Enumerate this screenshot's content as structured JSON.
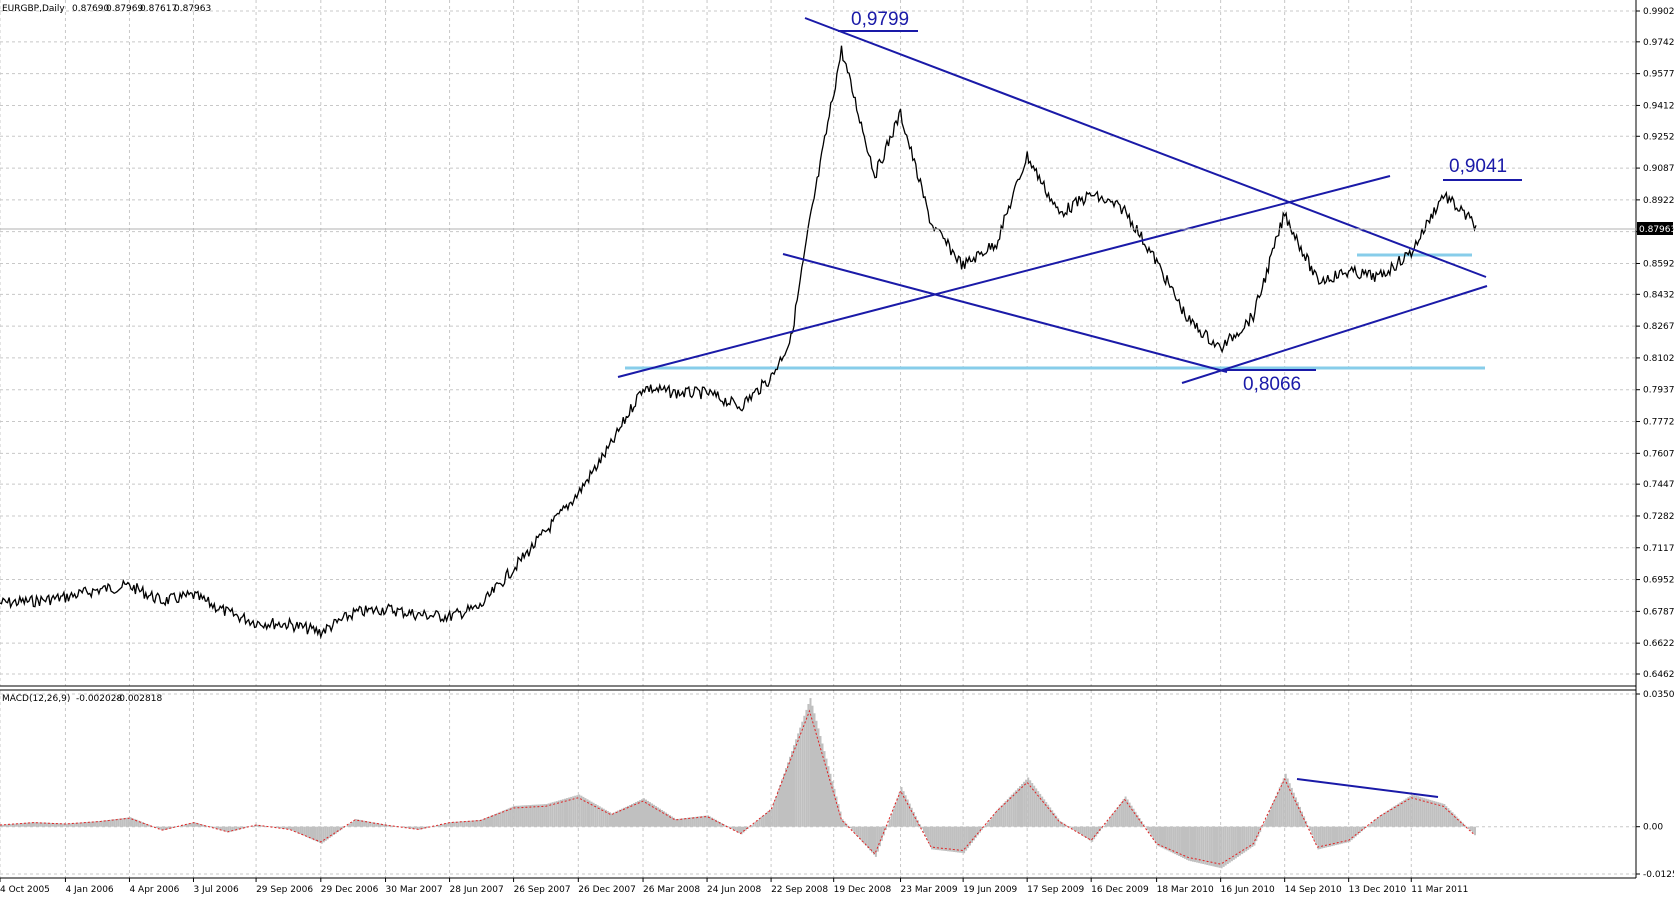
{
  "chart_data": [
    {
      "type": "line",
      "symbol": "EURGBP,Daily",
      "ohlc": [
        "0.87690",
        "0.87969",
        "0.87617",
        "0.87963"
      ],
      "current_price": "0.87963",
      "ylim": [
        0.6462,
        0.9902
      ],
      "y_ticks": [
        "0.99020",
        "0.97420",
        "0.95770",
        "0.94120",
        "0.92520",
        "0.90870",
        "0.89220",
        "0.87570",
        "0.85920",
        "0.84320",
        "0.82670",
        "0.81020",
        "0.79370",
        "0.77720",
        "0.76070",
        "0.74470",
        "0.72820",
        "0.71170",
        "0.69520",
        "0.67870",
        "0.66220",
        "0.64620"
      ],
      "x_ticks": [
        "4 Oct 2005",
        "4 Jan 2006",
        "4 Apr 2006",
        "3 Jul 2006",
        "29 Sep 2006",
        "29 Dec 2006",
        "30 Mar 2007",
        "28 Jun 2007",
        "26 Sep 2007",
        "26 Dec 2007",
        "26 Mar 2008",
        "24 Jun 2008",
        "22 Sep 2008",
        "19 Dec 2008",
        "23 Mar 2009",
        "19 Jun 2009",
        "17 Sep 2009",
        "16 Dec 2009",
        "18 Mar 2010",
        "16 Jun 2010",
        "14 Sep 2010",
        "13 Dec 2010",
        "11 Mar 2011"
      ],
      "x_range": [
        "2005-10-04",
        "2011-06-10"
      ],
      "series": [
        {
          "x": [
            "2005-10-04",
            "2005-11-20",
            "2006-01-04",
            "2006-02-20",
            "2006-04-04",
            "2006-05-20",
            "2006-07-03",
            "2006-08-20",
            "2006-09-29",
            "2006-11-15",
            "2006-12-29",
            "2007-02-15",
            "2007-03-30",
            "2007-05-15",
            "2007-06-28",
            "2007-08-10",
            "2007-09-26",
            "2007-11-10",
            "2007-12-26",
            "2008-02-10",
            "2008-03-26",
            "2008-05-10",
            "2008-06-24",
            "2008-08-10",
            "2008-09-22",
            "2008-10-20",
            "2008-11-15",
            "2008-12-30",
            "2009-02-15",
            "2009-03-23",
            "2009-05-05",
            "2009-06-19",
            "2009-08-05",
            "2009-09-17",
            "2009-11-01",
            "2009-12-16",
            "2010-02-01",
            "2010-03-18",
            "2010-05-01",
            "2010-06-16",
            "2010-08-01",
            "2010-09-14",
            "2010-10-30",
            "2010-12-13",
            "2011-01-25",
            "2011-03-11",
            "2011-04-25",
            "2011-06-10"
          ],
          "values": [
            0.683,
            0.684,
            0.686,
            0.69,
            0.692,
            0.684,
            0.687,
            0.678,
            0.673,
            0.672,
            0.668,
            0.678,
            0.68,
            0.677,
            0.676,
            0.681,
            0.701,
            0.72,
            0.74,
            0.765,
            0.795,
            0.792,
            0.792,
            0.785,
            0.8,
            0.82,
            0.88,
            0.97,
            0.905,
            0.937,
            0.88,
            0.858,
            0.87,
            0.915,
            0.885,
            0.895,
            0.887,
            0.86,
            0.83,
            0.815,
            0.832,
            0.885,
            0.85,
            0.855,
            0.852,
            0.865,
            0.895,
            0.879
          ]
        }
      ],
      "annotations": [
        "0,9799",
        "0,9041",
        "0,8066"
      ]
    },
    {
      "type": "bar",
      "title": "MACD(12,26,9)",
      "values_text": [
        "-0.002028",
        "-0.002818"
      ],
      "y_ticks": [
        "0.035097",
        "0.00",
        "-0.01251"
      ],
      "ylim": [
        -0.01251,
        0.035097
      ],
      "series": [
        {
          "name": "MACD",
          "x": [
            "2005-10-04",
            "2005-11-20",
            "2006-01-04",
            "2006-02-20",
            "2006-04-04",
            "2006-05-20",
            "2006-07-03",
            "2006-08-20",
            "2006-09-29",
            "2006-11-15",
            "2006-12-29",
            "2007-02-15",
            "2007-03-30",
            "2007-05-15",
            "2007-06-28",
            "2007-08-10",
            "2007-09-26",
            "2007-11-10",
            "2007-12-26",
            "2008-02-10",
            "2008-03-26",
            "2008-05-10",
            "2008-06-24",
            "2008-08-10",
            "2008-09-22",
            "2008-10-20",
            "2008-11-15",
            "2008-12-30",
            "2009-02-15",
            "2009-03-23",
            "2009-05-05",
            "2009-06-19",
            "2009-08-05",
            "2009-09-17",
            "2009-11-01",
            "2009-12-16",
            "2010-02-01",
            "2010-03-18",
            "2010-05-01",
            "2010-06-16",
            "2010-08-01",
            "2010-09-14",
            "2010-10-30",
            "2010-12-13",
            "2011-01-25",
            "2011-03-11",
            "2011-04-25",
            "2011-06-10"
          ],
          "values": [
            0.0005,
            0.0012,
            0.0008,
            0.0015,
            0.0025,
            -0.001,
            0.0012,
            -0.0015,
            0.0005,
            -0.0008,
            -0.0045,
            0.002,
            0.0005,
            -0.0008,
            0.0012,
            0.0018,
            0.0055,
            0.006,
            0.0085,
            0.0035,
            0.0075,
            0.002,
            0.003,
            -0.002,
            0.005,
            0.02,
            0.034,
            0.002,
            -0.008,
            0.0105,
            -0.006,
            -0.007,
            0.0045,
            0.013,
            0.0015,
            -0.004,
            0.008,
            -0.005,
            -0.009,
            -0.011,
            -0.005,
            0.014,
            -0.006,
            -0.004,
            0.003,
            0.0085,
            0.006,
            -0.0028
          ]
        }
      ]
    }
  ]
}
